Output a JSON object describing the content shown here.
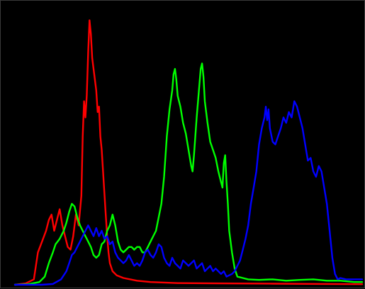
{
  "chart_data": {
    "type": "line",
    "title": "",
    "xlabel": "",
    "ylabel": "",
    "xlim": [
      0,
      256
    ],
    "ylim": [
      0,
      1
    ],
    "grid": false,
    "legend": "none",
    "background": "#000000",
    "series": [
      {
        "color": "#ff0000",
        "points": [
          [
            0,
            0.0
          ],
          [
            8,
            0.005
          ],
          [
            14,
            0.02
          ],
          [
            17,
            0.12
          ],
          [
            20,
            0.16
          ],
          [
            23,
            0.2
          ],
          [
            25,
            0.24
          ],
          [
            27,
            0.26
          ],
          [
            29,
            0.2
          ],
          [
            31,
            0.24
          ],
          [
            33,
            0.28
          ],
          [
            35,
            0.22
          ],
          [
            37,
            0.18
          ],
          [
            39,
            0.14
          ],
          [
            41,
            0.13
          ],
          [
            43,
            0.18
          ],
          [
            45,
            0.26
          ],
          [
            47,
            0.22
          ],
          [
            49,
            0.33
          ],
          [
            50,
            0.55
          ],
          [
            51,
            0.68
          ],
          [
            52,
            0.62
          ],
          [
            53,
            0.7
          ],
          [
            54,
            0.86
          ],
          [
            55,
            0.98
          ],
          [
            56,
            0.93
          ],
          [
            57,
            0.84
          ],
          [
            58,
            0.8
          ],
          [
            59,
            0.76
          ],
          [
            60,
            0.72
          ],
          [
            61,
            0.64
          ],
          [
            62,
            0.66
          ],
          [
            63,
            0.55
          ],
          [
            64,
            0.5
          ],
          [
            65,
            0.42
          ],
          [
            66,
            0.34
          ],
          [
            67,
            0.26
          ],
          [
            68,
            0.18
          ],
          [
            69,
            0.12
          ],
          [
            70,
            0.08
          ],
          [
            72,
            0.05
          ],
          [
            75,
            0.035
          ],
          [
            80,
            0.025
          ],
          [
            90,
            0.015
          ],
          [
            100,
            0.01
          ],
          [
            120,
            0.006
          ],
          [
            150,
            0.005
          ],
          [
            190,
            0.004
          ],
          [
            230,
            0.003
          ],
          [
            256,
            0.002
          ]
        ]
      },
      {
        "color": "#00ff00",
        "points": [
          [
            0,
            0.0
          ],
          [
            10,
            0.002
          ],
          [
            18,
            0.01
          ],
          [
            22,
            0.03
          ],
          [
            25,
            0.08
          ],
          [
            28,
            0.12
          ],
          [
            30,
            0.15
          ],
          [
            33,
            0.17
          ],
          [
            36,
            0.2
          ],
          [
            38,
            0.23
          ],
          [
            40,
            0.27
          ],
          [
            42,
            0.3
          ],
          [
            44,
            0.29
          ],
          [
            46,
            0.25
          ],
          [
            48,
            0.22
          ],
          [
            50,
            0.2
          ],
          [
            52,
            0.18
          ],
          [
            54,
            0.16
          ],
          [
            56,
            0.14
          ],
          [
            58,
            0.11
          ],
          [
            60,
            0.1
          ],
          [
            62,
            0.11
          ],
          [
            64,
            0.15
          ],
          [
            66,
            0.16
          ],
          [
            68,
            0.2
          ],
          [
            70,
            0.22
          ],
          [
            72,
            0.26
          ],
          [
            74,
            0.22
          ],
          [
            76,
            0.16
          ],
          [
            78,
            0.13
          ],
          [
            80,
            0.12
          ],
          [
            82,
            0.13
          ],
          [
            84,
            0.14
          ],
          [
            86,
            0.14
          ],
          [
            88,
            0.13
          ],
          [
            90,
            0.14
          ],
          [
            92,
            0.14
          ],
          [
            94,
            0.12
          ],
          [
            96,
            0.12
          ],
          [
            98,
            0.14
          ],
          [
            100,
            0.16
          ],
          [
            102,
            0.18
          ],
          [
            104,
            0.2
          ],
          [
            106,
            0.25
          ],
          [
            108,
            0.3
          ],
          [
            110,
            0.4
          ],
          [
            112,
            0.55
          ],
          [
            114,
            0.65
          ],
          [
            116,
            0.72
          ],
          [
            117,
            0.78
          ],
          [
            118,
            0.8
          ],
          [
            119,
            0.76
          ],
          [
            120,
            0.7
          ],
          [
            122,
            0.66
          ],
          [
            124,
            0.6
          ],
          [
            126,
            0.56
          ],
          [
            128,
            0.5
          ],
          [
            130,
            0.44
          ],
          [
            131,
            0.42
          ],
          [
            132,
            0.48
          ],
          [
            134,
            0.62
          ],
          [
            136,
            0.74
          ],
          [
            137,
            0.8
          ],
          [
            138,
            0.82
          ],
          [
            139,
            0.77
          ],
          [
            140,
            0.68
          ],
          [
            142,
            0.6
          ],
          [
            144,
            0.53
          ],
          [
            146,
            0.5
          ],
          [
            148,
            0.47
          ],
          [
            150,
            0.42
          ],
          [
            152,
            0.38
          ],
          [
            153,
            0.36
          ],
          [
            154,
            0.45
          ],
          [
            155,
            0.48
          ],
          [
            156,
            0.38
          ],
          [
            157,
            0.3
          ],
          [
            158,
            0.2
          ],
          [
            160,
            0.12
          ],
          [
            162,
            0.06
          ],
          [
            164,
            0.03
          ],
          [
            168,
            0.025
          ],
          [
            172,
            0.02
          ],
          [
            180,
            0.018
          ],
          [
            190,
            0.02
          ],
          [
            200,
            0.015
          ],
          [
            210,
            0.018
          ],
          [
            220,
            0.02
          ],
          [
            230,
            0.015
          ],
          [
            240,
            0.015
          ],
          [
            250,
            0.01
          ],
          [
            256,
            0.01
          ]
        ]
      },
      {
        "color": "#0000ff",
        "points": [
          [
            0,
            0.0
          ],
          [
            20,
            0.0
          ],
          [
            28,
            0.003
          ],
          [
            34,
            0.02
          ],
          [
            38,
            0.05
          ],
          [
            40,
            0.08
          ],
          [
            42,
            0.11
          ],
          [
            44,
            0.12
          ],
          [
            46,
            0.14
          ],
          [
            48,
            0.16
          ],
          [
            50,
            0.18
          ],
          [
            52,
            0.2
          ],
          [
            54,
            0.22
          ],
          [
            56,
            0.2
          ],
          [
            58,
            0.18
          ],
          [
            60,
            0.21
          ],
          [
            62,
            0.18
          ],
          [
            64,
            0.2
          ],
          [
            66,
            0.17
          ],
          [
            68,
            0.18
          ],
          [
            70,
            0.15
          ],
          [
            72,
            0.16
          ],
          [
            74,
            0.12
          ],
          [
            76,
            0.1
          ],
          [
            78,
            0.09
          ],
          [
            80,
            0.08
          ],
          [
            82,
            0.09
          ],
          [
            84,
            0.11
          ],
          [
            86,
            0.09
          ],
          [
            88,
            0.07
          ],
          [
            90,
            0.08
          ],
          [
            92,
            0.07
          ],
          [
            94,
            0.09
          ],
          [
            96,
            0.12
          ],
          [
            98,
            0.13
          ],
          [
            100,
            0.11
          ],
          [
            102,
            0.1
          ],
          [
            104,
            0.12
          ],
          [
            106,
            0.15
          ],
          [
            108,
            0.14
          ],
          [
            110,
            0.1
          ],
          [
            112,
            0.08
          ],
          [
            114,
            0.07
          ],
          [
            116,
            0.1
          ],
          [
            118,
            0.08
          ],
          [
            120,
            0.07
          ],
          [
            122,
            0.06
          ],
          [
            124,
            0.09
          ],
          [
            126,
            0.08
          ],
          [
            128,
            0.07
          ],
          [
            130,
            0.08
          ],
          [
            132,
            0.09
          ],
          [
            134,
            0.06
          ],
          [
            136,
            0.07
          ],
          [
            138,
            0.08
          ],
          [
            140,
            0.05
          ],
          [
            142,
            0.06
          ],
          [
            144,
            0.07
          ],
          [
            146,
            0.05
          ],
          [
            148,
            0.06
          ],
          [
            150,
            0.05
          ],
          [
            152,
            0.04
          ],
          [
            154,
            0.05
          ],
          [
            156,
            0.03
          ],
          [
            158,
            0.035
          ],
          [
            160,
            0.04
          ],
          [
            162,
            0.05
          ],
          [
            164,
            0.07
          ],
          [
            166,
            0.09
          ],
          [
            168,
            0.13
          ],
          [
            170,
            0.17
          ],
          [
            172,
            0.22
          ],
          [
            174,
            0.3
          ],
          [
            176,
            0.36
          ],
          [
            178,
            0.42
          ],
          [
            180,
            0.52
          ],
          [
            182,
            0.58
          ],
          [
            184,
            0.62
          ],
          [
            185,
            0.66
          ],
          [
            186,
            0.61
          ],
          [
            187,
            0.65
          ],
          [
            188,
            0.58
          ],
          [
            190,
            0.53
          ],
          [
            192,
            0.52
          ],
          [
            194,
            0.55
          ],
          [
            196,
            0.58
          ],
          [
            198,
            0.62
          ],
          [
            200,
            0.6
          ],
          [
            202,
            0.64
          ],
          [
            204,
            0.62
          ],
          [
            206,
            0.68
          ],
          [
            208,
            0.66
          ],
          [
            210,
            0.62
          ],
          [
            212,
            0.58
          ],
          [
            214,
            0.52
          ],
          [
            216,
            0.46
          ],
          [
            218,
            0.47
          ],
          [
            220,
            0.42
          ],
          [
            222,
            0.4
          ],
          [
            224,
            0.44
          ],
          [
            226,
            0.42
          ],
          [
            228,
            0.36
          ],
          [
            230,
            0.3
          ],
          [
            232,
            0.2
          ],
          [
            234,
            0.1
          ],
          [
            236,
            0.04
          ],
          [
            238,
            0.02
          ],
          [
            240,
            0.025
          ],
          [
            244,
            0.02
          ],
          [
            248,
            0.02
          ],
          [
            252,
            0.02
          ],
          [
            256,
            0.02
          ]
        ]
      }
    ]
  }
}
